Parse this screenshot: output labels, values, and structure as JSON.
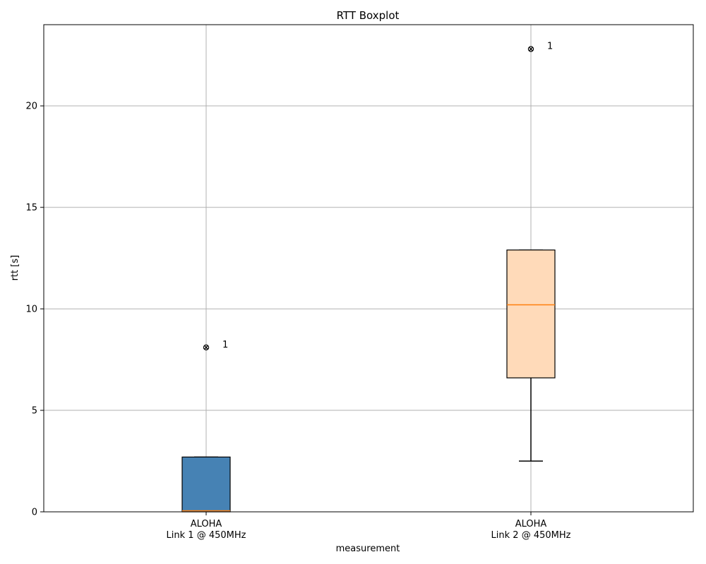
{
  "chart_data": {
    "type": "boxplot",
    "title": "RTT Boxplot",
    "xlabel": "measurement",
    "ylabel": "rtt [s]",
    "ylim": [
      0,
      24
    ],
    "yticks": [
      0,
      5,
      10,
      15,
      20
    ],
    "grid": true,
    "categories": [
      "ALOHA\nLink 1 @ 450MHz",
      "ALOHA\nLink 2 @ 450MHz"
    ],
    "boxes": [
      {
        "label_line1": "ALOHA",
        "label_line2": "Link 1 @ 450MHz",
        "whisker_low": 0.0,
        "q1": 0.0,
        "median": 0.05,
        "q3": 2.7,
        "whisker_high": 2.7,
        "outliers": [
          8.1
        ],
        "outlier_annotations": [
          "1"
        ],
        "fill_color": "#4682b4"
      },
      {
        "label_line1": "ALOHA",
        "label_line2": "Link 2 @ 450MHz",
        "whisker_low": 2.5,
        "q1": 6.6,
        "median": 10.2,
        "q3": 12.9,
        "whisker_high": 12.9,
        "outliers": [
          22.8
        ],
        "outlier_annotations": [
          "1"
        ],
        "fill_color": "#ffdab9"
      }
    ],
    "median_color": "#ff7f0e",
    "grid_color": "#b0b0b0"
  }
}
